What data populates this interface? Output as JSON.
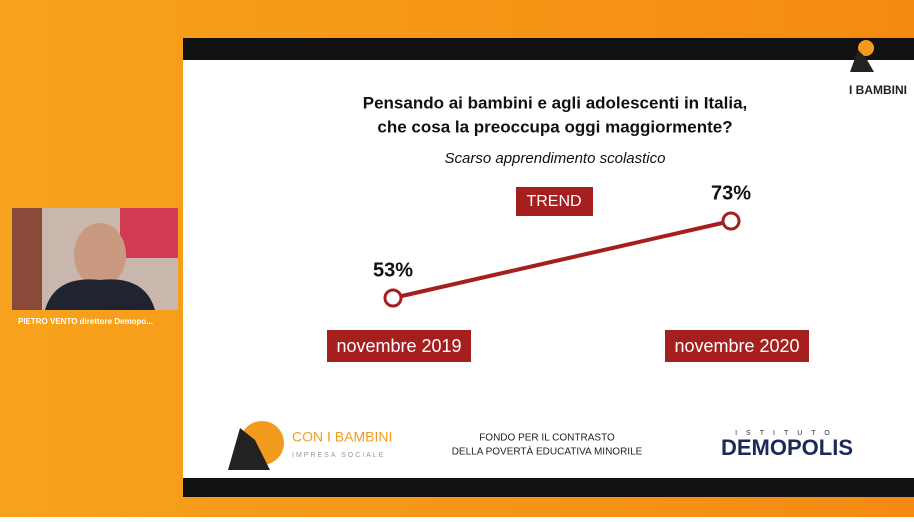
{
  "video": {
    "caption": "PIETRO VENTO direttore Demopo..."
  },
  "slide": {
    "logo_top": "I BAMBINI",
    "footer": {
      "brand": "CON I BAMBINI",
      "brand_sub": "IMPRESA SOCIALE",
      "fund_lines": [
        "FONDO PER IL CONTRASTO",
        "DELLA POVERTÀ EDUCATIVA MINORILE"
      ],
      "institute": "ISTITUTO",
      "institute_name": "DEMOPOLIS"
    }
  },
  "chart_data": {
    "type": "line",
    "title": [
      "Pensando ai bambini e agli adolescenti in Italia,",
      "che cosa la preoccupa oggi maggiormente?"
    ],
    "subtitle": "Scarso apprendimento scolastico",
    "annotation": "TREND",
    "categories": [
      "novembre 2019",
      "novembre 2020"
    ],
    "values": [
      53,
      73
    ],
    "value_labels": [
      "53%",
      "73%"
    ],
    "color": "#a51f1f"
  }
}
